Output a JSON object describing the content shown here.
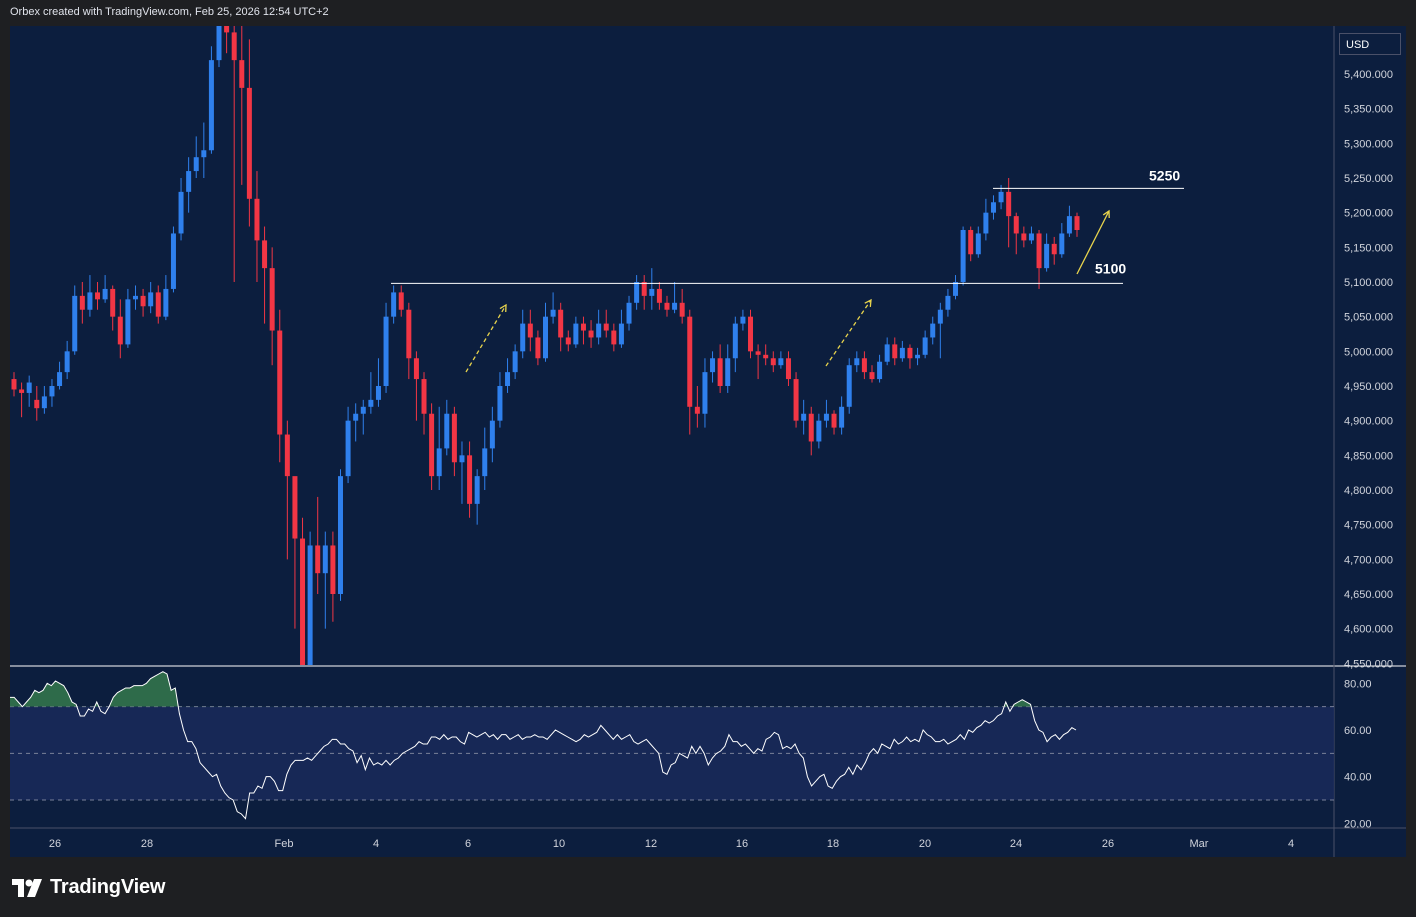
{
  "header": {
    "text": "Orbex created with TradingView.com, Feb 25, 2026 12:54 UTC+2"
  },
  "currency_button": "USD",
  "footer": {
    "brand": "TradingView"
  },
  "colors": {
    "background": "#0c1e3e",
    "up": "#2f80ed",
    "down": "#f23645",
    "rsi_line": "#ffffff",
    "rsi_band": "#1a2a5a",
    "overbought_fill": "#2e6b4a",
    "arrow": "#e8d44d"
  },
  "chart_data": [
    {
      "type": "candlestick",
      "title": "",
      "currency": "USD",
      "y_ticks": [
        "5,400.000",
        "5,350.000",
        "5,300.000",
        "5,250.000",
        "5,200.000",
        "5,150.000",
        "5,100.000",
        "5,050.000",
        "5,000.000",
        "4,950.000",
        "4,900.000",
        "4,850.000",
        "4,800.000",
        "4,750.000",
        "4,700.000",
        "4,650.000",
        "4,600.000",
        "4,550.000"
      ],
      "ylim": [
        4550,
        5465
      ],
      "x_ticks": [
        "26",
        "28",
        "Feb",
        "4",
        "6",
        "10",
        "12",
        "16",
        "18",
        "20",
        "24",
        "26",
        "Mar",
        "4"
      ],
      "annotations": [
        {
          "label": "5250",
          "price": 5235
        },
        {
          "label": "5100",
          "price": 5098
        }
      ],
      "candles": [
        [
          4960,
          4945,
          4970,
          4935
        ],
        [
          4945,
          4940,
          4955,
          4905
        ],
        [
          4940,
          4955,
          4965,
          4920
        ],
        [
          4930,
          4918,
          4950,
          4900
        ],
        [
          4918,
          4935,
          4950,
          4910
        ],
        [
          4935,
          4950,
          4960,
          4920
        ],
        [
          4950,
          4970,
          4985,
          4945
        ],
        [
          4970,
          5000,
          5015,
          4960
        ],
        [
          5000,
          5080,
          5095,
          4995
        ],
        [
          5080,
          5060,
          5100,
          5040
        ],
        [
          5060,
          5085,
          5110,
          5050
        ],
        [
          5085,
          5075,
          5100,
          5060
        ],
        [
          5075,
          5090,
          5110,
          5070
        ],
        [
          5090,
          5050,
          5095,
          5030
        ],
        [
          5050,
          5010,
          5075,
          4990
        ],
        [
          5010,
          5075,
          5090,
          5005
        ],
        [
          5075,
          5080,
          5095,
          5060
        ],
        [
          5080,
          5065,
          5090,
          5050
        ],
        [
          5065,
          5085,
          5100,
          5055
        ],
        [
          5085,
          5050,
          5095,
          5040
        ],
        [
          5050,
          5090,
          5110,
          5045
        ],
        [
          5090,
          5170,
          5180,
          5085
        ],
        [
          5170,
          5230,
          5250,
          5160
        ],
        [
          5230,
          5260,
          5280,
          5200
        ],
        [
          5260,
          5280,
          5310,
          5250
        ],
        [
          5280,
          5290,
          5330,
          5250
        ],
        [
          5290,
          5420,
          5440,
          5285
        ],
        [
          5420,
          5520,
          5560,
          5410
        ],
        [
          5520,
          5460,
          5600,
          5430
        ],
        [
          5460,
          5420,
          5500,
          5100
        ],
        [
          5420,
          5380,
          5480,
          5240
        ],
        [
          5380,
          5220,
          5450,
          5180
        ],
        [
          5220,
          5160,
          5260,
          5100
        ],
        [
          5160,
          5120,
          5180,
          5040
        ],
        [
          5120,
          5030,
          5150,
          4980
        ],
        [
          5030,
          4880,
          5060,
          4840
        ],
        [
          4880,
          4820,
          4900,
          4700
        ],
        [
          4820,
          4730,
          4800,
          4600
        ],
        [
          4730,
          4530,
          4760,
          4500
        ],
        [
          4530,
          4720,
          4740,
          4520
        ],
        [
          4720,
          4680,
          4790,
          4650
        ],
        [
          4680,
          4720,
          4740,
          4600
        ],
        [
          4720,
          4650,
          4740,
          4610
        ],
        [
          4650,
          4820,
          4830,
          4640
        ],
        [
          4820,
          4900,
          4920,
          4810
        ],
        [
          4900,
          4910,
          4925,
          4870
        ],
        [
          4910,
          4920,
          4930,
          4880
        ],
        [
          4920,
          4930,
          4970,
          4910
        ],
        [
          4930,
          4950,
          4990,
          4920
        ],
        [
          4950,
          5050,
          5070,
          4940
        ],
        [
          5050,
          5085,
          5095,
          5040
        ],
        [
          5085,
          5060,
          5095,
          5050
        ],
        [
          5060,
          4990,
          5070,
          4960
        ],
        [
          4990,
          4960,
          5000,
          4900
        ],
        [
          4960,
          4910,
          4970,
          4880
        ],
        [
          4910,
          4820,
          4925,
          4800
        ],
        [
          4820,
          4860,
          4920,
          4800
        ],
        [
          4860,
          4910,
          4930,
          4850
        ],
        [
          4910,
          4840,
          4920,
          4820
        ],
        [
          4840,
          4850,
          4870,
          4780
        ],
        [
          4850,
          4780,
          4870,
          4760
        ],
        [
          4780,
          4820,
          4830,
          4750
        ],
        [
          4820,
          4860,
          4890,
          4800
        ],
        [
          4860,
          4900,
          4920,
          4840
        ],
        [
          4900,
          4950,
          4970,
          4890
        ],
        [
          4950,
          4970,
          4990,
          4940
        ],
        [
          4970,
          5000,
          5010,
          4960
        ],
        [
          5000,
          5040,
          5060,
          4990
        ],
        [
          5040,
          5020,
          5060,
          5000
        ],
        [
          5020,
          4990,
          5030,
          4980
        ],
        [
          4990,
          5050,
          5070,
          4985
        ],
        [
          5050,
          5060,
          5085,
          5040
        ],
        [
          5060,
          5020,
          5070,
          5000
        ],
        [
          5020,
          5010,
          5030,
          5000
        ],
        [
          5010,
          5040,
          5050,
          5005
        ],
        [
          5040,
          5030,
          5050,
          5010
        ],
        [
          5030,
          5020,
          5045,
          5005
        ],
        [
          5020,
          5040,
          5060,
          5010
        ],
        [
          5040,
          5030,
          5060,
          5020
        ],
        [
          5030,
          5010,
          5040,
          5000
        ],
        [
          5010,
          5040,
          5060,
          5005
        ],
        [
          5040,
          5070,
          5080,
          5030
        ],
        [
          5070,
          5100,
          5110,
          5060
        ],
        [
          5100,
          5080,
          5110,
          5060
        ],
        [
          5080,
          5090,
          5120,
          5060
        ],
        [
          5090,
          5070,
          5100,
          5060
        ],
        [
          5070,
          5060,
          5080,
          5050
        ],
        [
          5060,
          5070,
          5100,
          5055
        ],
        [
          5070,
          5050,
          5090,
          5040
        ],
        [
          5050,
          4920,
          5060,
          4880
        ],
        [
          4920,
          4910,
          4950,
          4890
        ],
        [
          4910,
          4970,
          4990,
          4890
        ],
        [
          4970,
          4990,
          5000,
          4955
        ],
        [
          4990,
          4950,
          5010,
          4940
        ],
        [
          4950,
          4990,
          5010,
          4940
        ],
        [
          4990,
          5040,
          5050,
          4970
        ],
        [
          5040,
          5050,
          5060,
          5030
        ],
        [
          5050,
          5000,
          5060,
          4990
        ],
        [
          5000,
          4995,
          5010,
          4960
        ],
        [
          4995,
          4990,
          5010,
          4980
        ],
        [
          4990,
          4980,
          5000,
          4970
        ],
        [
          4980,
          4990,
          5000,
          4975
        ],
        [
          4990,
          4960,
          5000,
          4950
        ],
        [
          4960,
          4900,
          4970,
          4890
        ],
        [
          4900,
          4910,
          4930,
          4880
        ],
        [
          4910,
          4870,
          4920,
          4850
        ],
        [
          4870,
          4900,
          4910,
          4860
        ],
        [
          4900,
          4910,
          4930,
          4890
        ],
        [
          4910,
          4890,
          4915,
          4880
        ],
        [
          4890,
          4920,
          4935,
          4880
        ],
        [
          4920,
          4980,
          4990,
          4910
        ],
        [
          4980,
          4990,
          5000,
          4970
        ],
        [
          4990,
          4970,
          5000,
          4960
        ],
        [
          4970,
          4960,
          4980,
          4955
        ],
        [
          4960,
          4985,
          4995,
          4955
        ],
        [
          4985,
          5010,
          5020,
          4980
        ],
        [
          5010,
          4990,
          5020,
          4980
        ],
        [
          4990,
          5005,
          5015,
          4985
        ],
        [
          5005,
          4990,
          5010,
          4975
        ],
        [
          4990,
          4995,
          5005,
          4980
        ],
        [
          4995,
          5020,
          5030,
          4990
        ],
        [
          5020,
          5040,
          5050,
          5010
        ],
        [
          5040,
          5060,
          5070,
          4990
        ],
        [
          5060,
          5080,
          5090,
          5050
        ],
        [
          5080,
          5100,
          5110,
          5075
        ],
        [
          5100,
          5175,
          5180,
          5095
        ],
        [
          5175,
          5140,
          5180,
          5130
        ],
        [
          5140,
          5170,
          5180,
          5135
        ],
        [
          5170,
          5200,
          5220,
          5160
        ],
        [
          5200,
          5215,
          5225,
          5190
        ],
        [
          5215,
          5230,
          5240,
          5205
        ],
        [
          5230,
          5195,
          5250,
          5150
        ],
        [
          5195,
          5170,
          5200,
          5140
        ],
        [
          5170,
          5160,
          5180,
          5150
        ],
        [
          5160,
          5170,
          5180,
          5155
        ],
        [
          5170,
          5120,
          5175,
          5090
        ],
        [
          5120,
          5155,
          5170,
          5115
        ],
        [
          5155,
          5140,
          5165,
          5125
        ],
        [
          5140,
          5170,
          5185,
          5135
        ],
        [
          5170,
          5195,
          5210,
          5165
        ],
        [
          5195,
          5175,
          5200,
          5165
        ]
      ]
    },
    {
      "type": "line",
      "name": "RSI",
      "y_ticks": [
        "80.00",
        "60.00",
        "40.00",
        "20.00"
      ],
      "ylim": [
        18,
        87
      ],
      "levels": [
        70,
        50,
        30
      ],
      "values": [
        74,
        74,
        72,
        70,
        72,
        74,
        77,
        76,
        77,
        80,
        79,
        81,
        80,
        79,
        76,
        72,
        71,
        66,
        66,
        69,
        68,
        72,
        68,
        67,
        70,
        74,
        76,
        77,
        78,
        78,
        79,
        79,
        79,
        80,
        82,
        83,
        84,
        85,
        84,
        77,
        78,
        67,
        60,
        55,
        55,
        52,
        46,
        44,
        42,
        40,
        41,
        36,
        33,
        31,
        30,
        25,
        24,
        22,
        33,
        33,
        36,
        35,
        40,
        40,
        38,
        34,
        34,
        41,
        45,
        47,
        47,
        47,
        48,
        47,
        49,
        51,
        53,
        54,
        56,
        56,
        54,
        54,
        52,
        51,
        46,
        49,
        43,
        48,
        45,
        46,
        45,
        47,
        45,
        47,
        48,
        50,
        51,
        52,
        53,
        55,
        54,
        54,
        57,
        57,
        56,
        58,
        56,
        57,
        57,
        55,
        54,
        59,
        58,
        57,
        58,
        59,
        57,
        58,
        56,
        58,
        58,
        56,
        57,
        58,
        56,
        57,
        57,
        58,
        57,
        57,
        56,
        58,
        60,
        59,
        58,
        57,
        56,
        55,
        56,
        58,
        57,
        58,
        59,
        62,
        60,
        58,
        56,
        58,
        56,
        57,
        58,
        55,
        54,
        55,
        56,
        54,
        52,
        50,
        42,
        41,
        45,
        46,
        50,
        49,
        48,
        53,
        50,
        53,
        50,
        45,
        48,
        50,
        51,
        53,
        58,
        55,
        55,
        53,
        54,
        52,
        50,
        52,
        51,
        56,
        57,
        59,
        58,
        52,
        53,
        52,
        54,
        50,
        48,
        40,
        36,
        38,
        40,
        41,
        36,
        35,
        38,
        40,
        41,
        44,
        41,
        45,
        43,
        46,
        50,
        52,
        50,
        54,
        53,
        52,
        56,
        54,
        55,
        57,
        55,
        56,
        55,
        60,
        58,
        57,
        55,
        55,
        56,
        54,
        55,
        56,
        58,
        56,
        60,
        59,
        61,
        62,
        64,
        63,
        64,
        66,
        67,
        72,
        68,
        71,
        72,
        73,
        72,
        71,
        64,
        60,
        59,
        55,
        57,
        58,
        56,
        58,
        59,
        61,
        60
      ]
    }
  ]
}
